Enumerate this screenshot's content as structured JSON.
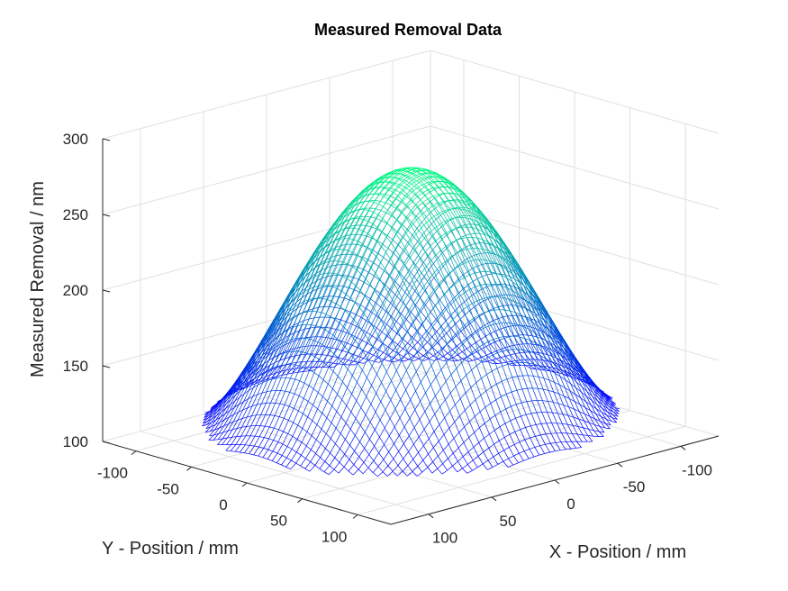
{
  "chart_data": {
    "type": "surface",
    "title": "Measured Removal Data",
    "xlabel": "X - Position / mm",
    "ylabel": "Y - Position / mm",
    "zlabel": "Measured Removal / nm",
    "xlim": [
      -130,
      130
    ],
    "ylim": [
      -130,
      130
    ],
    "zlim": [
      100,
      300
    ],
    "xticks": [
      -100,
      -50,
      0,
      50,
      100
    ],
    "yticks": [
      -100,
      -50,
      0,
      50,
      100
    ],
    "zticks": [
      100,
      150,
      200,
      250,
      300
    ],
    "grid": true,
    "surface": {
      "shape": "radially symmetric dome over circular aperture",
      "aperture_radius": 125,
      "peak_value": 278,
      "edge_value": 113,
      "colormap": [
        "#0000ff",
        "#00ff80"
      ]
    }
  }
}
